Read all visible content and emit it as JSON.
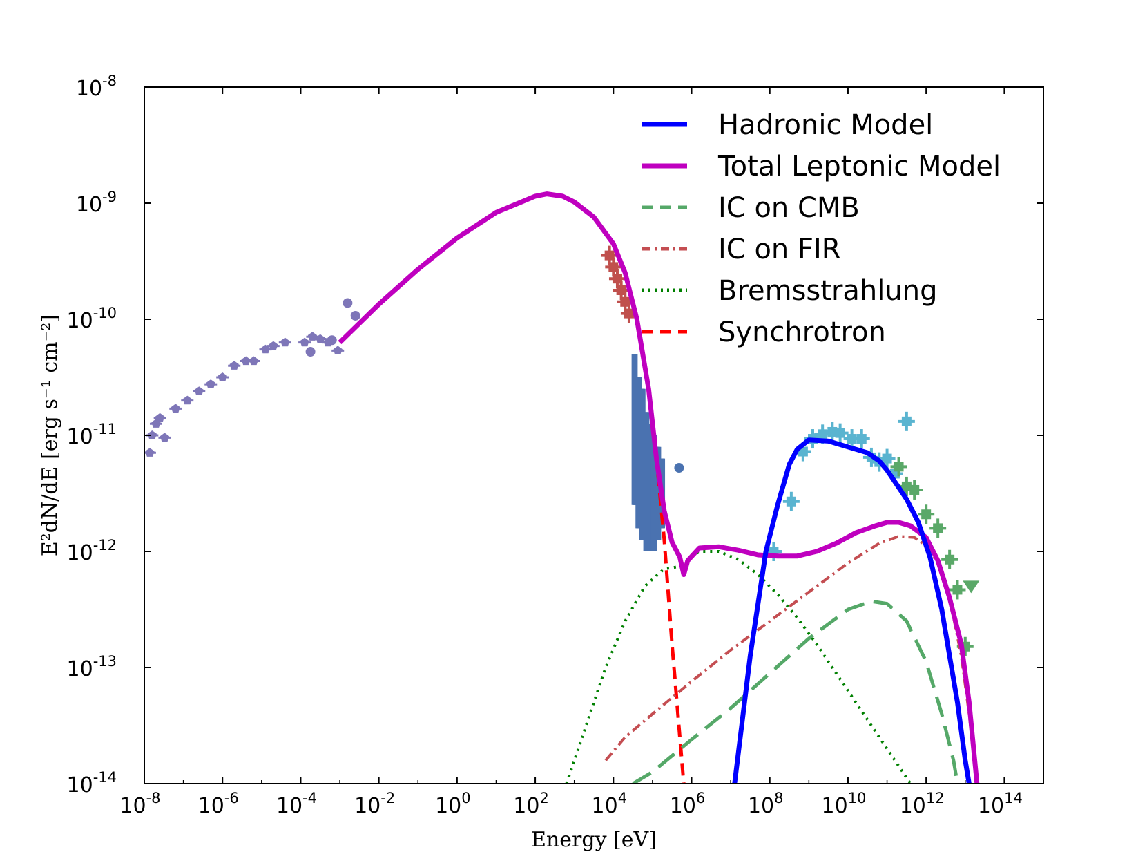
{
  "chart_data": {
    "type": "line",
    "title": "",
    "xlabel": "Energy [eV]",
    "ylabel": "E²dN/dE [erg s⁻¹ cm⁻²]",
    "xscale": "log",
    "yscale": "log",
    "xlim": [
      1e-08,
      1000000000000000.0
    ],
    "ylim": [
      1e-14,
      1e-08
    ],
    "x_ticks": [
      {
        "base": "10",
        "exp": "-8"
      },
      {
        "base": "10",
        "exp": "-6"
      },
      {
        "base": "10",
        "exp": "-4"
      },
      {
        "base": "10",
        "exp": "-2"
      },
      {
        "base": "10",
        "exp": "0"
      },
      {
        "base": "10",
        "exp": "2"
      },
      {
        "base": "10",
        "exp": "4"
      },
      {
        "base": "10",
        "exp": "6"
      },
      {
        "base": "10",
        "exp": "8"
      },
      {
        "base": "10",
        "exp": "10"
      },
      {
        "base": "10",
        "exp": "12"
      },
      {
        "base": "10",
        "exp": "14"
      }
    ],
    "y_ticks": [
      {
        "base": "10",
        "exp": "-14"
      },
      {
        "base": "10",
        "exp": "-13"
      },
      {
        "base": "10",
        "exp": "-12"
      },
      {
        "base": "10",
        "exp": "-11"
      },
      {
        "base": "10",
        "exp": "-10"
      },
      {
        "base": "10",
        "exp": "-9"
      },
      {
        "base": "10",
        "exp": "-8"
      }
    ],
    "legend": {
      "position": "top-right",
      "entries": [
        {
          "label": "Hadronic Model",
          "color": "#0000ff",
          "style": "solid-thick"
        },
        {
          "label": "Total Leptonic Model",
          "color": "#bf00bf",
          "style": "solid-thick"
        },
        {
          "label": "IC on CMB",
          "color": "#55a868",
          "style": "dashed"
        },
        {
          "label": "IC on FIR",
          "color": "#c44e52",
          "style": "dashdot"
        },
        {
          "label": "Bremsstrahlung",
          "color": "#008000",
          "style": "dotted"
        },
        {
          "label": "Synchrotron",
          "color": "#ff0000",
          "style": "dashed"
        }
      ]
    },
    "series": [
      {
        "name": "Synchrotron",
        "color": "#ff0000",
        "dash": "18 10",
        "width": 5,
        "points": [
          [
            -3,
            -10.2
          ],
          [
            -2,
            -9.87
          ],
          [
            -1,
            -9.57
          ],
          [
            0,
            -9.3
          ],
          [
            1,
            -9.08
          ],
          [
            2,
            -8.94
          ],
          [
            2.3,
            -8.92
          ],
          [
            2.7,
            -8.94
          ],
          [
            3,
            -8.99
          ],
          [
            3.5,
            -9.12
          ],
          [
            4,
            -9.35
          ],
          [
            4.3,
            -9.6
          ],
          [
            4.6,
            -10.0
          ],
          [
            4.9,
            -10.6
          ],
          [
            5.1,
            -11.2
          ],
          [
            5.3,
            -11.9
          ],
          [
            5.5,
            -12.8
          ],
          [
            5.7,
            -13.6
          ],
          [
            5.8,
            -14.0
          ]
        ]
      },
      {
        "name": "Bremsstrahlung",
        "color": "#008000",
        "dash": "3 7",
        "width": 4,
        "points": [
          [
            2.8,
            -14.0
          ],
          [
            3.3,
            -13.5
          ],
          [
            3.8,
            -13.0
          ],
          [
            4.3,
            -12.6
          ],
          [
            4.8,
            -12.3
          ],
          [
            5.3,
            -12.15
          ],
          [
            5.7,
            -12.13
          ],
          [
            6.2,
            -12.0
          ],
          [
            6.7,
            -12.0
          ],
          [
            7.2,
            -12.07
          ],
          [
            7.7,
            -12.2
          ],
          [
            8.2,
            -12.37
          ],
          [
            8.7,
            -12.57
          ],
          [
            9.2,
            -12.8
          ],
          [
            9.7,
            -13.05
          ],
          [
            10.2,
            -13.3
          ],
          [
            10.7,
            -13.55
          ],
          [
            11.2,
            -13.8
          ],
          [
            11.6,
            -14.0
          ]
        ]
      },
      {
        "name": "IC on FIR",
        "color": "#c44e52",
        "dash": "14 6 3 6",
        "width": 4,
        "points": [
          [
            3.8,
            -13.8
          ],
          [
            4.3,
            -13.6
          ],
          [
            5,
            -13.4
          ],
          [
            6,
            -13.12
          ],
          [
            7,
            -12.85
          ],
          [
            8,
            -12.6
          ],
          [
            9,
            -12.35
          ],
          [
            10,
            -12.1
          ],
          [
            10.8,
            -11.93
          ],
          [
            11.3,
            -11.87
          ],
          [
            11.7,
            -11.88
          ],
          [
            12,
            -11.95
          ],
          [
            12.3,
            -12.1
          ],
          [
            12.6,
            -12.4
          ],
          [
            12.9,
            -12.9
          ],
          [
            13.1,
            -13.4
          ],
          [
            13.3,
            -14.0
          ]
        ]
      },
      {
        "name": "IC on CMB",
        "color": "#55a868",
        "dash": "30 14",
        "width": 5,
        "points": [
          [
            4.5,
            -14.0
          ],
          [
            5,
            -13.9
          ],
          [
            6,
            -13.62
          ],
          [
            7,
            -13.35
          ],
          [
            8,
            -13.05
          ],
          [
            9,
            -12.75
          ],
          [
            10,
            -12.5
          ],
          [
            10.6,
            -12.43
          ],
          [
            11,
            -12.45
          ],
          [
            11.5,
            -12.6
          ],
          [
            12,
            -12.95
          ],
          [
            12.4,
            -13.4
          ],
          [
            12.7,
            -13.8
          ],
          [
            12.8,
            -14.0
          ]
        ]
      },
      {
        "name": "Total Leptonic Model",
        "color": "#bf00bf",
        "dash": "",
        "width": 7,
        "points": [
          [
            -3,
            -10.2
          ],
          [
            -2,
            -9.87
          ],
          [
            -1,
            -9.57
          ],
          [
            0,
            -9.3
          ],
          [
            1,
            -9.08
          ],
          [
            2,
            -8.94
          ],
          [
            2.3,
            -8.92
          ],
          [
            2.7,
            -8.94
          ],
          [
            3,
            -8.99
          ],
          [
            3.5,
            -9.12
          ],
          [
            4,
            -9.35
          ],
          [
            4.3,
            -9.6
          ],
          [
            4.6,
            -10.0
          ],
          [
            4.9,
            -10.6
          ],
          [
            5.1,
            -11.2
          ],
          [
            5.3,
            -11.65
          ],
          [
            5.5,
            -11.92
          ],
          [
            5.7,
            -12.05
          ],
          [
            5.8,
            -12.2
          ],
          [
            5.9,
            -12.08
          ],
          [
            6.2,
            -11.97
          ],
          [
            6.7,
            -11.96
          ],
          [
            7.2,
            -11.99
          ],
          [
            7.7,
            -12.03
          ],
          [
            8.2,
            -12.04
          ],
          [
            8.7,
            -12.04
          ],
          [
            9.2,
            -12.0
          ],
          [
            9.7,
            -11.93
          ],
          [
            10.2,
            -11.84
          ],
          [
            10.7,
            -11.78
          ],
          [
            11,
            -11.75
          ],
          [
            11.3,
            -11.75
          ],
          [
            11.6,
            -11.78
          ],
          [
            12,
            -11.88
          ],
          [
            12.3,
            -12.08
          ],
          [
            12.6,
            -12.4
          ],
          [
            12.9,
            -12.8
          ],
          [
            13.1,
            -13.3
          ],
          [
            13.3,
            -14.0
          ]
        ]
      },
      {
        "name": "Hadronic Model",
        "color": "#0000ff",
        "dash": "",
        "width": 7,
        "points": [
          [
            7.1,
            -14.0
          ],
          [
            7.5,
            -12.9
          ],
          [
            7.9,
            -12.0
          ],
          [
            8.2,
            -11.6
          ],
          [
            8.5,
            -11.25
          ],
          [
            8.7,
            -11.12
          ],
          [
            9.0,
            -11.04
          ],
          [
            9.5,
            -11.05
          ],
          [
            10.0,
            -11.1
          ],
          [
            10.5,
            -11.15
          ],
          [
            10.8,
            -11.22
          ],
          [
            11.0,
            -11.3
          ],
          [
            11.5,
            -11.55
          ],
          [
            11.8,
            -11.75
          ],
          [
            12.1,
            -12.05
          ],
          [
            12.4,
            -12.5
          ],
          [
            12.6,
            -12.9
          ],
          [
            12.8,
            -13.3
          ],
          [
            13.0,
            -13.8
          ],
          [
            13.1,
            -14.0
          ]
        ]
      }
    ],
    "data_sets": [
      {
        "name": "radio",
        "color": "#7e76b8",
        "marker": "pentagon",
        "points": [
          [
            -7.86,
            -11.15
          ],
          [
            -7.8,
            -11.0
          ],
          [
            -7.7,
            -10.9
          ],
          [
            -7.6,
            -10.85
          ],
          [
            -7.48,
            -11.02
          ],
          [
            -7.2,
            -10.77
          ],
          [
            -6.9,
            -10.7
          ],
          [
            -6.6,
            -10.62
          ],
          [
            -6.3,
            -10.56
          ],
          [
            -6.0,
            -10.5
          ],
          [
            -5.7,
            -10.4
          ],
          [
            -5.4,
            -10.36
          ],
          [
            -5.2,
            -10.36
          ],
          [
            -4.9,
            -10.26
          ],
          [
            -4.7,
            -10.23
          ],
          [
            -4.4,
            -10.2
          ],
          [
            -3.9,
            -10.2
          ],
          [
            -3.7,
            -10.15
          ],
          [
            -3.5,
            -10.17
          ],
          [
            -3.3,
            -10.2
          ],
          [
            -3.05,
            -10.27
          ]
        ],
        "circles": [
          [
            -3.75,
            -10.28
          ],
          [
            -3.2,
            -10.18
          ],
          [
            -2.8,
            -9.86
          ],
          [
            -2.6,
            -9.97
          ]
        ]
      },
      {
        "name": "x-ray-soft",
        "color": "#c0504d",
        "marker": "square",
        "points": [
          [
            3.9,
            -9.45
          ],
          [
            4.0,
            -9.55
          ],
          [
            4.1,
            -9.65
          ],
          [
            4.2,
            -9.75
          ],
          [
            4.3,
            -9.85
          ],
          [
            4.4,
            -9.95
          ]
        ]
      },
      {
        "name": "x-ray-hard",
        "color": "#4a72b0",
        "marker": "bar",
        "bars": [
          [
            4.5,
            -10.3,
            -11.6
          ],
          [
            4.6,
            -10.5,
            -11.8
          ],
          [
            4.7,
            -10.6,
            -11.9
          ],
          [
            4.8,
            -10.8,
            -12.0
          ],
          [
            4.9,
            -10.9,
            -12.0
          ],
          [
            5.0,
            -11.0,
            -12.0
          ],
          [
            5.1,
            -11.1,
            -11.9
          ],
          [
            5.2,
            -11.2,
            -11.8
          ]
        ],
        "circles": [
          [
            5.68,
            -11.28
          ]
        ]
      },
      {
        "name": "gamma-fermi",
        "color": "#5ab4d0",
        "marker": "square",
        "points": [
          [
            8.1,
            -12.0
          ],
          [
            8.55,
            -11.57
          ],
          [
            8.85,
            -11.14
          ],
          [
            9.1,
            -11.03
          ],
          [
            9.35,
            -10.99
          ],
          [
            9.6,
            -10.97
          ],
          [
            9.8,
            -10.98
          ],
          [
            10.1,
            -11.03
          ],
          [
            10.35,
            -11.03
          ],
          [
            10.6,
            -11.19
          ],
          [
            10.8,
            -11.23
          ],
          [
            11.0,
            -11.2
          ],
          [
            11.2,
            -11.33
          ],
          [
            11.5,
            -10.88
          ]
        ]
      },
      {
        "name": "gamma-hess",
        "color": "#5aa868",
        "marker": "square",
        "points": [
          [
            11.3,
            -11.27
          ],
          [
            11.5,
            -11.44
          ],
          [
            11.7,
            -11.47
          ],
          [
            12.0,
            -11.68
          ],
          [
            12.3,
            -11.8
          ],
          [
            12.6,
            -12.07
          ],
          [
            12.8,
            -12.33
          ],
          [
            13.0,
            -12.82
          ]
        ],
        "triangles": [
          [
            13.15,
            -12.3
          ]
        ]
      }
    ]
  }
}
